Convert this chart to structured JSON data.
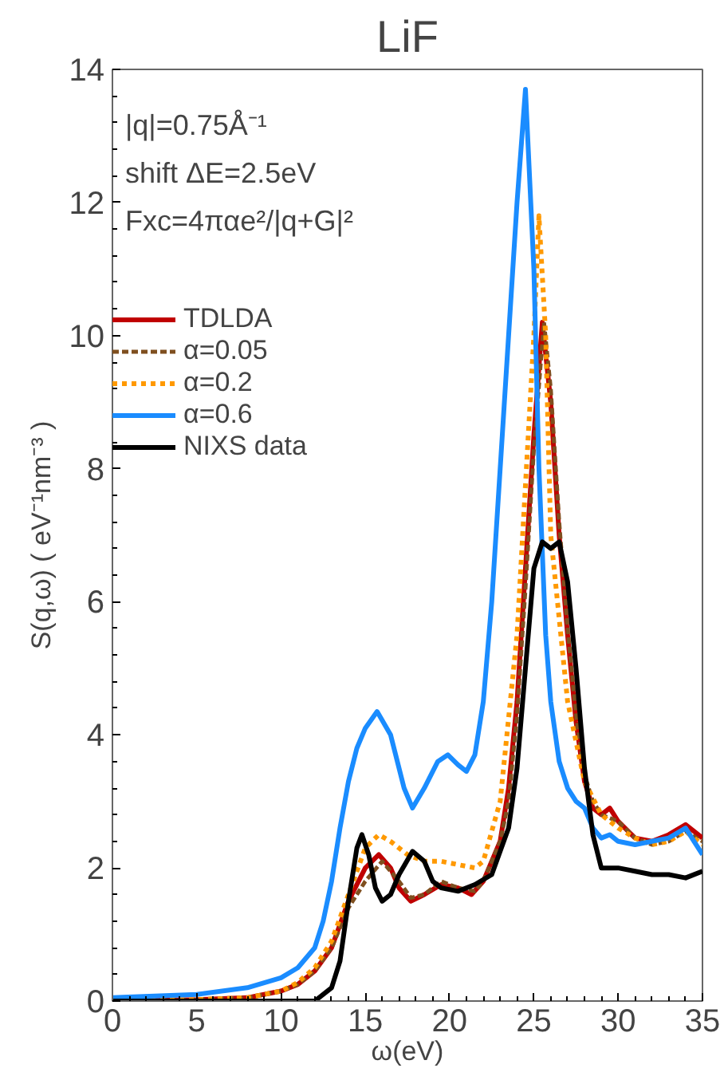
{
  "chart_data": {
    "type": "line",
    "title": "LiF",
    "xlabel": "ω(eV)",
    "ylabel": "S(q,ω) ( eV⁻¹nm⁻³ )",
    "annotations": [
      "|q|=0.75Å⁻¹",
      "shift ΔE=2.5eV",
      "Fxc=4παe²/|q+G|²"
    ],
    "xlim": [
      0,
      35
    ],
    "xticks": [
      0,
      5,
      10,
      15,
      20,
      25,
      30,
      35
    ],
    "ylim": [
      0,
      14
    ],
    "yticks": [
      0,
      2,
      4,
      6,
      8,
      10,
      12,
      14
    ],
    "grid": false,
    "legend": "top left",
    "series": [
      {
        "name": "TDLDA",
        "color": "#c00000",
        "line_style": "solid",
        "x": [
          0,
          5,
          8,
          10,
          11,
          12,
          13,
          14,
          15,
          15.8,
          16.5,
          17,
          17.7,
          18.5,
          19.5,
          20.5,
          21.3,
          22,
          23,
          23.5,
          24,
          24.5,
          25,
          25.5,
          26,
          26.5,
          27,
          27.5,
          28,
          28.5,
          29,
          29.5,
          30,
          31,
          32,
          33,
          34,
          35
        ],
        "values": [
          0,
          0.02,
          0.05,
          0.15,
          0.25,
          0.45,
          0.8,
          1.5,
          2.0,
          2.2,
          2.0,
          1.7,
          1.5,
          1.6,
          1.75,
          1.7,
          1.6,
          1.8,
          2.4,
          3.2,
          4.5,
          6.5,
          8.5,
          10.2,
          9.0,
          7.0,
          5.5,
          4.2,
          3.3,
          2.9,
          2.8,
          2.9,
          2.7,
          2.45,
          2.4,
          2.5,
          2.65,
          2.45
        ]
      },
      {
        "name": "α=0.05",
        "color": "#7f4f1f",
        "line_style": "dashed",
        "x": [
          0,
          5,
          8,
          10,
          11,
          12,
          13,
          14,
          15,
          16,
          17,
          17.7,
          18.5,
          19.5,
          20.5,
          21.5,
          22,
          23,
          23.5,
          24,
          24.5,
          25,
          25.6,
          26,
          26.5,
          27,
          27.5,
          28,
          28.5,
          29,
          30,
          31,
          32,
          33,
          34,
          35
        ],
        "values": [
          0,
          0.02,
          0.05,
          0.15,
          0.25,
          0.45,
          0.8,
          1.4,
          1.8,
          2.1,
          1.8,
          1.55,
          1.6,
          1.8,
          1.7,
          1.65,
          1.8,
          2.4,
          3.0,
          4.3,
          6.2,
          8.3,
          10.2,
          9.2,
          7.2,
          5.6,
          4.3,
          3.4,
          3.0,
          2.8,
          2.7,
          2.45,
          2.35,
          2.4,
          2.55,
          2.4
        ]
      },
      {
        "name": "α=0.2",
        "color": "#ff9900",
        "line_style": "dotted",
        "x": [
          0,
          5,
          8,
          10,
          11,
          12,
          13,
          14,
          15,
          15.8,
          16.5,
          17.5,
          18.5,
          19.5,
          20.5,
          21.5,
          22,
          23,
          24,
          25,
          25.3,
          25.7,
          26,
          27,
          28,
          29,
          30,
          31,
          32,
          33,
          34,
          35
        ],
        "values": [
          0,
          0.02,
          0.05,
          0.15,
          0.28,
          0.5,
          0.9,
          1.6,
          2.3,
          2.5,
          2.4,
          2.2,
          2.1,
          2.1,
          2.05,
          2.0,
          2.1,
          3.0,
          5.5,
          10.0,
          11.8,
          10.0,
          7.0,
          4.5,
          3.3,
          2.8,
          2.6,
          2.45,
          2.35,
          2.4,
          2.55,
          2.35
        ]
      },
      {
        "name": "α=0.6",
        "color": "#1a8cff",
        "line_style": "solid",
        "x": [
          0,
          5,
          8,
          10,
          11,
          12,
          12.5,
          13,
          13.5,
          14,
          14.5,
          15,
          15.7,
          16.5,
          17.3,
          17.8,
          18.5,
          19.3,
          19.9,
          20.5,
          21,
          21.5,
          22,
          22.5,
          23,
          23.5,
          24,
          24.5,
          25,
          25.3,
          25.7,
          26,
          26.5,
          27,
          27.5,
          28,
          28.5,
          29,
          29.5,
          30,
          31,
          32,
          33,
          34,
          34.5,
          35
        ],
        "values": [
          0.05,
          0.1,
          0.2,
          0.35,
          0.5,
          0.8,
          1.2,
          1.8,
          2.6,
          3.3,
          3.8,
          4.1,
          4.35,
          4.0,
          3.2,
          2.9,
          3.2,
          3.6,
          3.7,
          3.55,
          3.45,
          3.7,
          4.5,
          6.0,
          8.0,
          10.0,
          12.0,
          13.7,
          11.0,
          8.0,
          5.5,
          4.5,
          3.6,
          3.2,
          3.0,
          2.9,
          2.6,
          2.45,
          2.5,
          2.4,
          2.35,
          2.4,
          2.45,
          2.6,
          2.4,
          2.2
        ]
      },
      {
        "name": "NIXS data",
        "color": "#000000",
        "line_style": "solid",
        "x": [
          0,
          12,
          13,
          13.5,
          14,
          14.5,
          14.8,
          15.2,
          15.6,
          16,
          16.5,
          17,
          17.8,
          18.5,
          19,
          19.5,
          20.5,
          21.5,
          22.5,
          23.5,
          24,
          24.5,
          25,
          25.5,
          26,
          26.5,
          27,
          27.5,
          28,
          28.5,
          29,
          30,
          31,
          32,
          33,
          34,
          35
        ],
        "values": [
          0,
          0,
          0.2,
          0.6,
          1.5,
          2.3,
          2.5,
          2.2,
          1.7,
          1.5,
          1.6,
          1.9,
          2.25,
          2.1,
          1.8,
          1.7,
          1.65,
          1.75,
          1.9,
          2.6,
          3.5,
          5.0,
          6.5,
          6.9,
          6.8,
          6.9,
          6.3,
          5.0,
          3.5,
          2.5,
          2.0,
          2.0,
          1.95,
          1.9,
          1.9,
          1.85,
          1.95
        ]
      }
    ]
  }
}
